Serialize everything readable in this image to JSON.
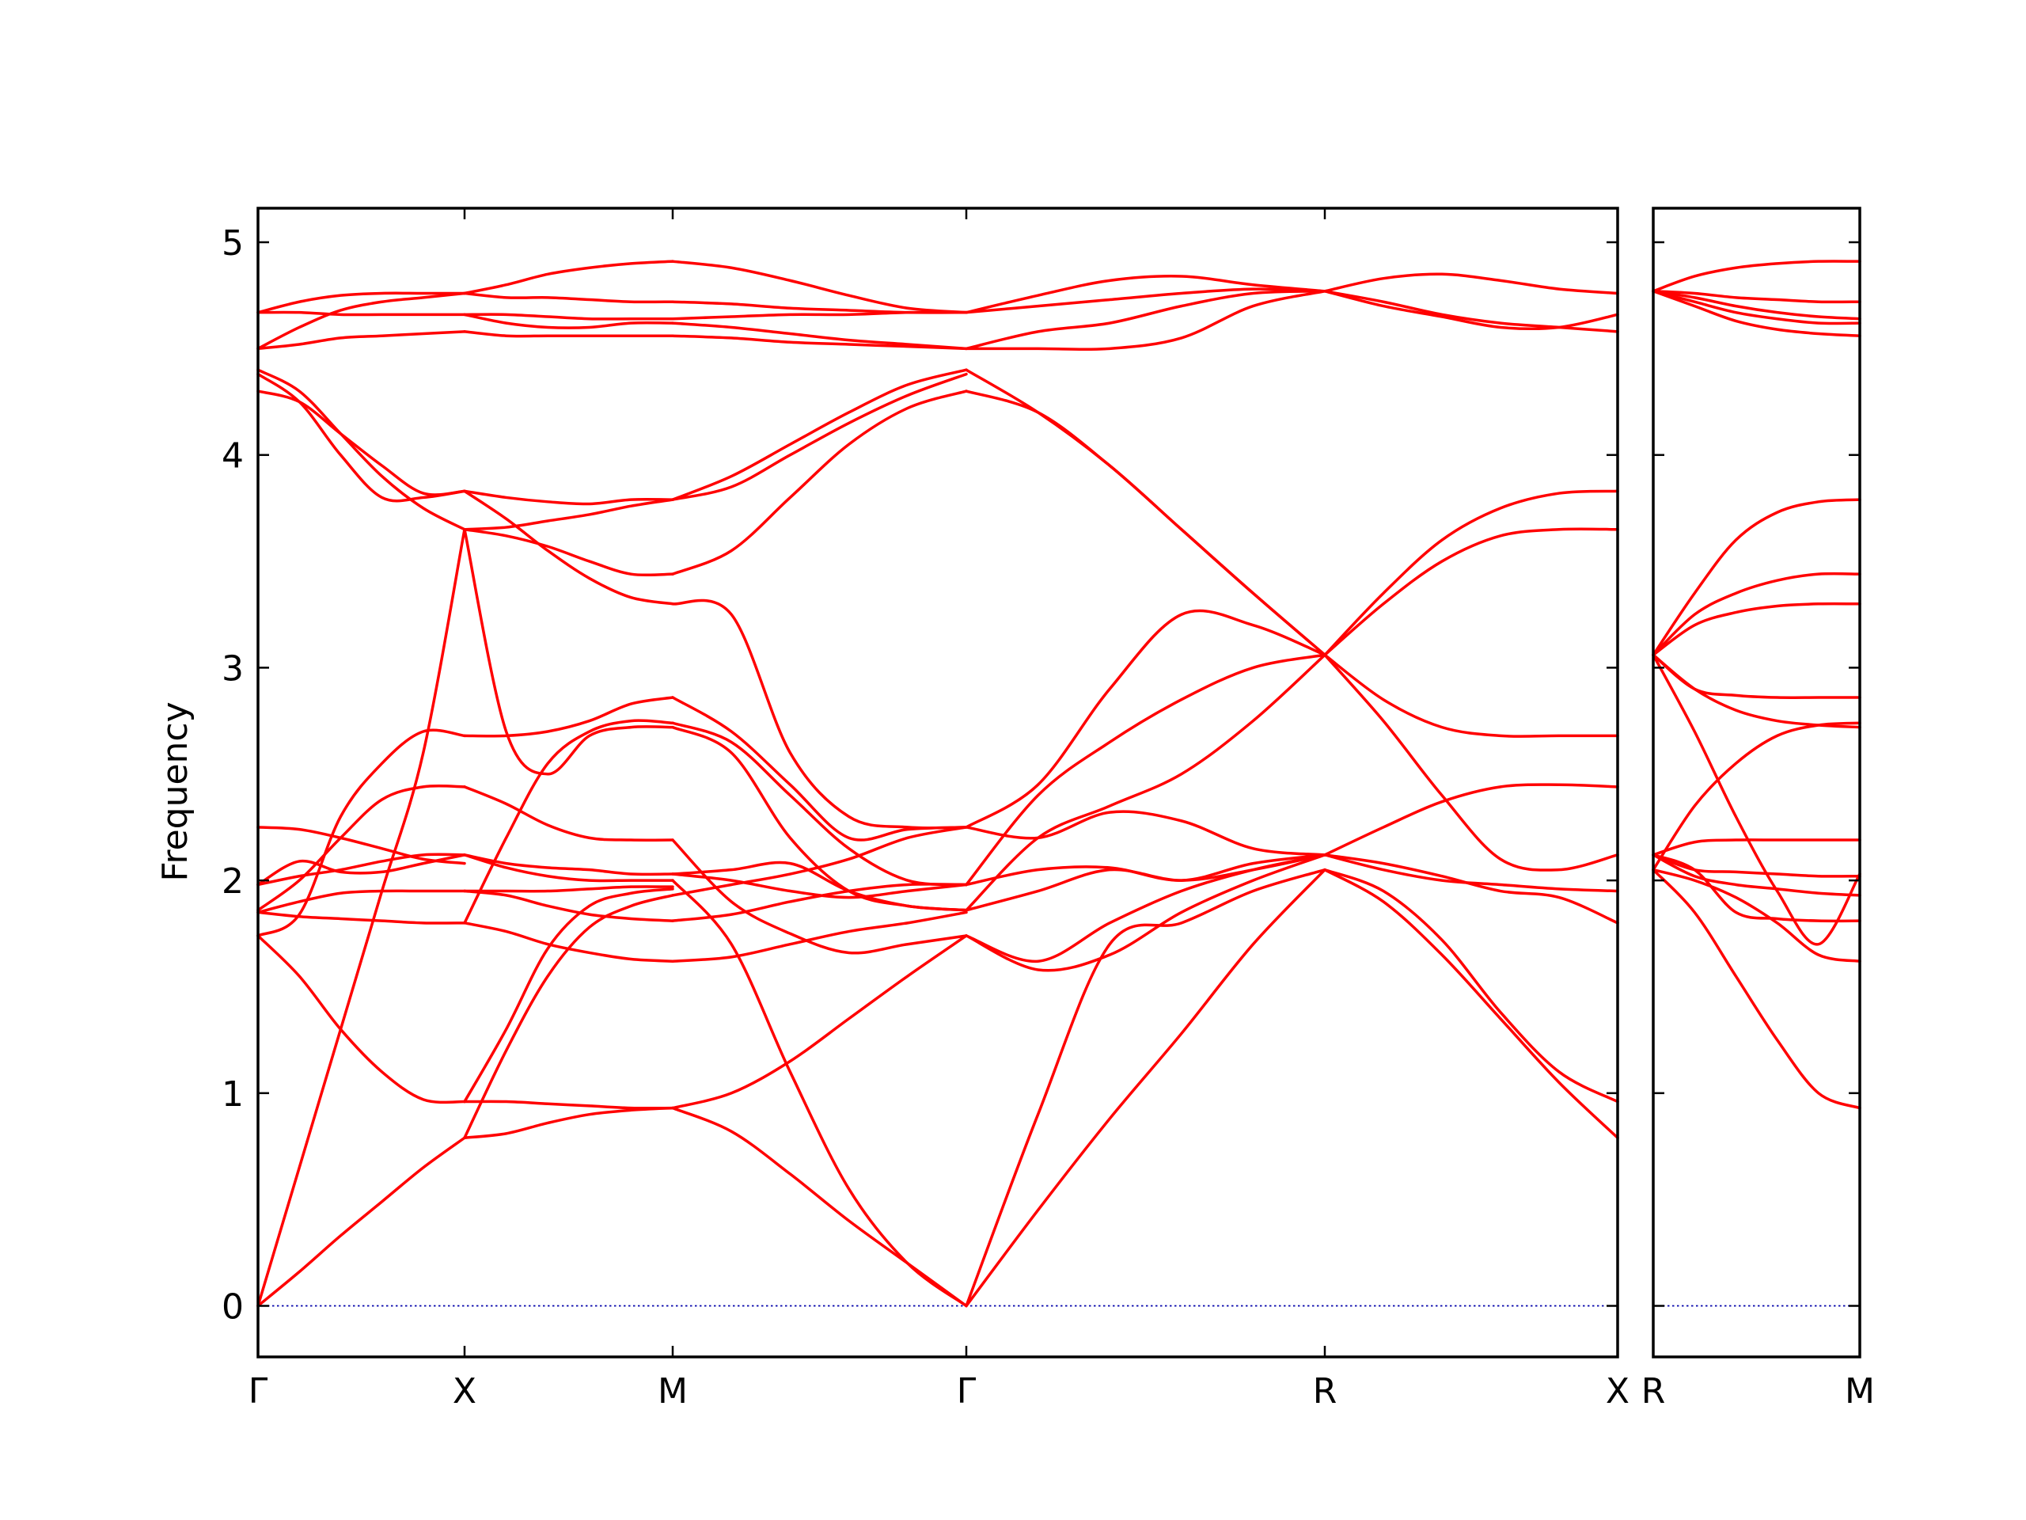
{
  "chart_data": {
    "type": "line",
    "ylabel": "Frequency",
    "ylim": [
      -0.24,
      5.16
    ],
    "yticks": [
      0,
      1,
      2,
      3,
      4,
      5
    ],
    "band_color": "#ff0000",
    "zero_line_color": "#0000aa",
    "grid": false,
    "panels": [
      {
        "xticks": [
          "Γ",
          "X",
          "M",
          "Γ",
          "R",
          "X"
        ],
        "segments": [
          {
            "from": "Γ",
            "to": "X",
            "bands": [
              [
                0,
                0.16,
                0.33,
                0.49,
                0.65,
                0.79
              ],
              [
                0,
                0.65,
                1.3,
                1.95,
                2.6,
                3.65
              ],
              [
                1.74,
                1.55,
                1.3,
                1.1,
                0.97,
                0.96
              ],
              [
                1.74,
                1.84,
                2.3,
                2.55,
                2.7,
                2.68
              ],
              [
                1.85,
                1.83,
                1.82,
                1.81,
                1.8,
                1.8
              ],
              [
                1.85,
                1.9,
                1.94,
                1.95,
                1.95,
                1.95
              ],
              [
                1.86,
                2.0,
                2.2,
                2.38,
                2.44,
                2.44
              ],
              [
                1.98,
                2.02,
                2.05,
                2.09,
                2.12,
                2.12
              ],
              [
                1.98,
                2.09,
                2.04,
                2.04,
                2.08,
                2.12
              ],
              [
                2.25,
                2.24,
                2.2,
                2.15,
                2.1,
                2.08
              ],
              [
                4.3,
                4.25,
                4.1,
                3.95,
                3.82,
                3.83
              ],
              [
                4.38,
                4.25,
                4.0,
                3.8,
                3.8,
                3.83
              ],
              [
                4.4,
                4.3,
                4.1,
                3.9,
                3.75,
                3.65
              ],
              [
                4.5,
                4.52,
                4.55,
                4.56,
                4.57,
                4.58
              ],
              [
                4.5,
                4.6,
                4.68,
                4.72,
                4.74,
                4.76
              ],
              [
                4.67,
                4.67,
                4.66,
                4.66,
                4.66,
                4.66
              ],
              [
                4.67,
                4.72,
                4.75,
                4.76,
                4.76,
                4.76
              ]
            ]
          },
          {
            "from": "X",
            "to": "M",
            "bands": [
              [
                0.79,
                0.81,
                0.86,
                0.9,
                0.92,
                0.93
              ],
              [
                0.96,
                0.96,
                0.95,
                0.94,
                0.93,
                0.93
              ],
              [
                0.79,
                1.2,
                1.55,
                1.78,
                1.88,
                1.93
              ],
              [
                0.96,
                1.3,
                1.68,
                1.88,
                1.94,
                1.96
              ],
              [
                3.65,
                2.7,
                2.5,
                2.68,
                2.72,
                2.72
              ],
              [
                1.8,
                1.76,
                1.7,
                1.66,
                1.63,
                1.62
              ],
              [
                1.8,
                2.2,
                2.55,
                2.7,
                2.75,
                2.74
              ],
              [
                1.95,
                1.93,
                1.88,
                1.84,
                1.82,
                1.81
              ],
              [
                1.95,
                1.95,
                1.95,
                1.96,
                1.97,
                1.97
              ],
              [
                2.12,
                2.06,
                2.02,
                2.0,
                2.0,
                2.0
              ],
              [
                2.12,
                2.08,
                2.06,
                2.05,
                2.03,
                2.03
              ],
              [
                2.44,
                2.36,
                2.26,
                2.2,
                2.19,
                2.19
              ],
              [
                2.68,
                2.68,
                2.7,
                2.75,
                2.83,
                2.86
              ],
              [
                3.83,
                3.7,
                3.55,
                3.42,
                3.33,
                3.3
              ],
              [
                3.65,
                3.66,
                3.69,
                3.72,
                3.76,
                3.79
              ],
              [
                3.83,
                3.8,
                3.78,
                3.77,
                3.79,
                3.79
              ],
              [
                3.65,
                3.62,
                3.57,
                3.5,
                3.44,
                3.44
              ],
              [
                4.58,
                4.56,
                4.56,
                4.56,
                4.56,
                4.56
              ],
              [
                4.66,
                4.62,
                4.6,
                4.6,
                4.62,
                4.62
              ],
              [
                4.66,
                4.66,
                4.65,
                4.64,
                4.64,
                4.64
              ],
              [
                4.76,
                4.74,
                4.74,
                4.73,
                4.72,
                4.72
              ],
              [
                4.76,
                4.8,
                4.85,
                4.88,
                4.9,
                4.91
              ]
            ]
          },
          {
            "from": "M",
            "to": "Γ",
            "bands": [
              [
                0.93,
                1.0,
                1.15,
                1.35,
                1.55,
                1.74
              ],
              [
                0.93,
                0.82,
                0.62,
                0.4,
                0.2,
                0
              ],
              [
                2.0,
                1.7,
                1.1,
                0.55,
                0.2,
                0
              ],
              [
                2.19,
                1.9,
                1.75,
                1.66,
                1.7,
                1.74
              ],
              [
                1.62,
                1.64,
                1.7,
                1.76,
                1.8,
                1.85
              ],
              [
                1.81,
                1.84,
                1.9,
                1.95,
                1.98,
                1.98
              ],
              [
                1.93,
                1.98,
                2.03,
                2.1,
                2.2,
                2.25
              ],
              [
                2.03,
                2.0,
                1.95,
                1.92,
                1.95,
                1.98
              ],
              [
                2.03,
                2.05,
                2.08,
                1.95,
                1.88,
                1.86
              ],
              [
                2.72,
                2.6,
                2.2,
                1.95,
                1.88,
                1.86
              ],
              [
                2.74,
                2.65,
                2.4,
                2.15,
                2.0,
                1.98
              ],
              [
                2.86,
                2.7,
                2.45,
                2.2,
                2.24,
                2.25
              ],
              [
                3.3,
                3.25,
                2.6,
                2.3,
                2.25,
                2.25
              ],
              [
                3.44,
                3.55,
                3.8,
                4.05,
                4.22,
                4.3
              ],
              [
                3.79,
                3.85,
                4.0,
                4.15,
                4.28,
                4.38
              ],
              [
                3.79,
                3.9,
                4.05,
                4.2,
                4.33,
                4.4
              ],
              [
                4.56,
                4.55,
                4.53,
                4.52,
                4.51,
                4.5
              ],
              [
                4.62,
                4.6,
                4.57,
                4.54,
                4.52,
                4.5
              ],
              [
                4.64,
                4.65,
                4.66,
                4.66,
                4.67,
                4.67
              ],
              [
                4.72,
                4.71,
                4.69,
                4.68,
                4.67,
                4.67
              ],
              [
                4.91,
                4.88,
                4.82,
                4.75,
                4.69,
                4.67
              ]
            ]
          },
          {
            "from": "Γ",
            "to": "R",
            "bands": [
              [
                0,
                0.45,
                0.88,
                1.28,
                1.7,
                2.05
              ],
              [
                0,
                0.9,
                1.7,
                1.8,
                1.95,
                2.05
              ],
              [
                1.74,
                1.58,
                1.65,
                1.85,
                2.0,
                2.12
              ],
              [
                1.74,
                1.62,
                1.8,
                1.95,
                2.05,
                2.12
              ],
              [
                1.86,
                1.95,
                2.05,
                2.0,
                2.05,
                2.12
              ],
              [
                1.86,
                2.2,
                2.35,
                2.5,
                2.75,
                3.06
              ],
              [
                1.98,
                2.05,
                2.06,
                2.0,
                2.08,
                2.12
              ],
              [
                1.98,
                2.4,
                2.65,
                2.85,
                3.0,
                3.06
              ],
              [
                2.25,
                2.2,
                2.32,
                2.28,
                2.15,
                2.12
              ],
              [
                2.25,
                2.45,
                2.9,
                3.25,
                3.2,
                3.06
              ],
              [
                4.3,
                4.2,
                3.95,
                3.65,
                3.35,
                3.06
              ],
              [
                4.4,
                4.2,
                3.95,
                3.65,
                3.35,
                3.06
              ],
              [
                4.5,
                4.5,
                4.5,
                4.55,
                4.7,
                4.77
              ],
              [
                4.5,
                4.58,
                4.62,
                4.7,
                4.76,
                4.77
              ],
              [
                4.67,
                4.7,
                4.73,
                4.76,
                4.78,
                4.77
              ],
              [
                4.67,
                4.75,
                4.82,
                4.84,
                4.8,
                4.77
              ]
            ]
          },
          {
            "from": "R",
            "to": "X",
            "bands": [
              [
                2.05,
                1.9,
                1.65,
                1.35,
                1.05,
                0.79
              ],
              [
                2.05,
                1.95,
                1.72,
                1.38,
                1.1,
                0.96
              ],
              [
                2.12,
                2.05,
                2.0,
                1.98,
                1.96,
                1.95
              ],
              [
                2.12,
                2.08,
                2.02,
                1.95,
                1.92,
                1.8
              ],
              [
                2.12,
                2.25,
                2.37,
                2.44,
                2.45,
                2.44
              ],
              [
                3.06,
                2.85,
                2.72,
                2.68,
                2.68,
                2.68
              ],
              [
                3.06,
                2.75,
                2.4,
                2.1,
                2.05,
                2.12
              ],
              [
                3.06,
                3.3,
                3.5,
                3.62,
                3.65,
                3.65
              ],
              [
                3.06,
                3.35,
                3.6,
                3.75,
                3.82,
                3.83
              ],
              [
                4.77,
                4.83,
                4.85,
                4.82,
                4.78,
                4.76
              ],
              [
                4.77,
                4.7,
                4.65,
                4.6,
                4.6,
                4.66
              ],
              [
                4.77,
                4.72,
                4.66,
                4.62,
                4.6,
                4.58
              ]
            ]
          }
        ]
      },
      {
        "xticks": [
          "R",
          "M"
        ],
        "segments": [
          {
            "from": "R",
            "to": "M",
            "bands": [
              [
                2.05,
                1.85,
                1.55,
                1.25,
                1.0,
                0.93
              ],
              [
                2.05,
                2.0,
                1.92,
                1.8,
                1.65,
                1.62
              ],
              [
                2.12,
                2.05,
                1.85,
                1.82,
                1.81,
                1.81
              ],
              [
                2.12,
                2.02,
                1.98,
                1.96,
                1.94,
                1.93
              ],
              [
                2.12,
                2.05,
                2.04,
                2.03,
                2.02,
                2.02
              ],
              [
                2.12,
                2.18,
                2.19,
                2.19,
                2.19,
                2.19
              ],
              [
                3.06,
                2.9,
                2.87,
                2.86,
                2.86,
                2.86
              ],
              [
                3.06,
                2.9,
                2.8,
                2.75,
                2.73,
                2.72
              ],
              [
                2.05,
                2.35,
                2.55,
                2.68,
                2.73,
                2.74
              ],
              [
                3.06,
                2.7,
                2.3,
                1.95,
                1.7,
                2.03
              ],
              [
                3.06,
                3.2,
                3.26,
                3.29,
                3.3,
                3.3
              ],
              [
                3.06,
                3.25,
                3.35,
                3.41,
                3.44,
                3.44
              ],
              [
                3.06,
                3.35,
                3.6,
                3.73,
                3.78,
                3.79
              ],
              [
                4.77,
                4.7,
                4.63,
                4.59,
                4.57,
                4.56
              ],
              [
                4.77,
                4.72,
                4.67,
                4.64,
                4.62,
                4.62
              ],
              [
                4.77,
                4.74,
                4.7,
                4.67,
                4.65,
                4.64
              ],
              [
                4.77,
                4.76,
                4.74,
                4.73,
                4.72,
                4.72
              ],
              [
                4.77,
                4.84,
                4.88,
                4.9,
                4.91,
                4.91
              ]
            ]
          }
        ]
      }
    ]
  }
}
